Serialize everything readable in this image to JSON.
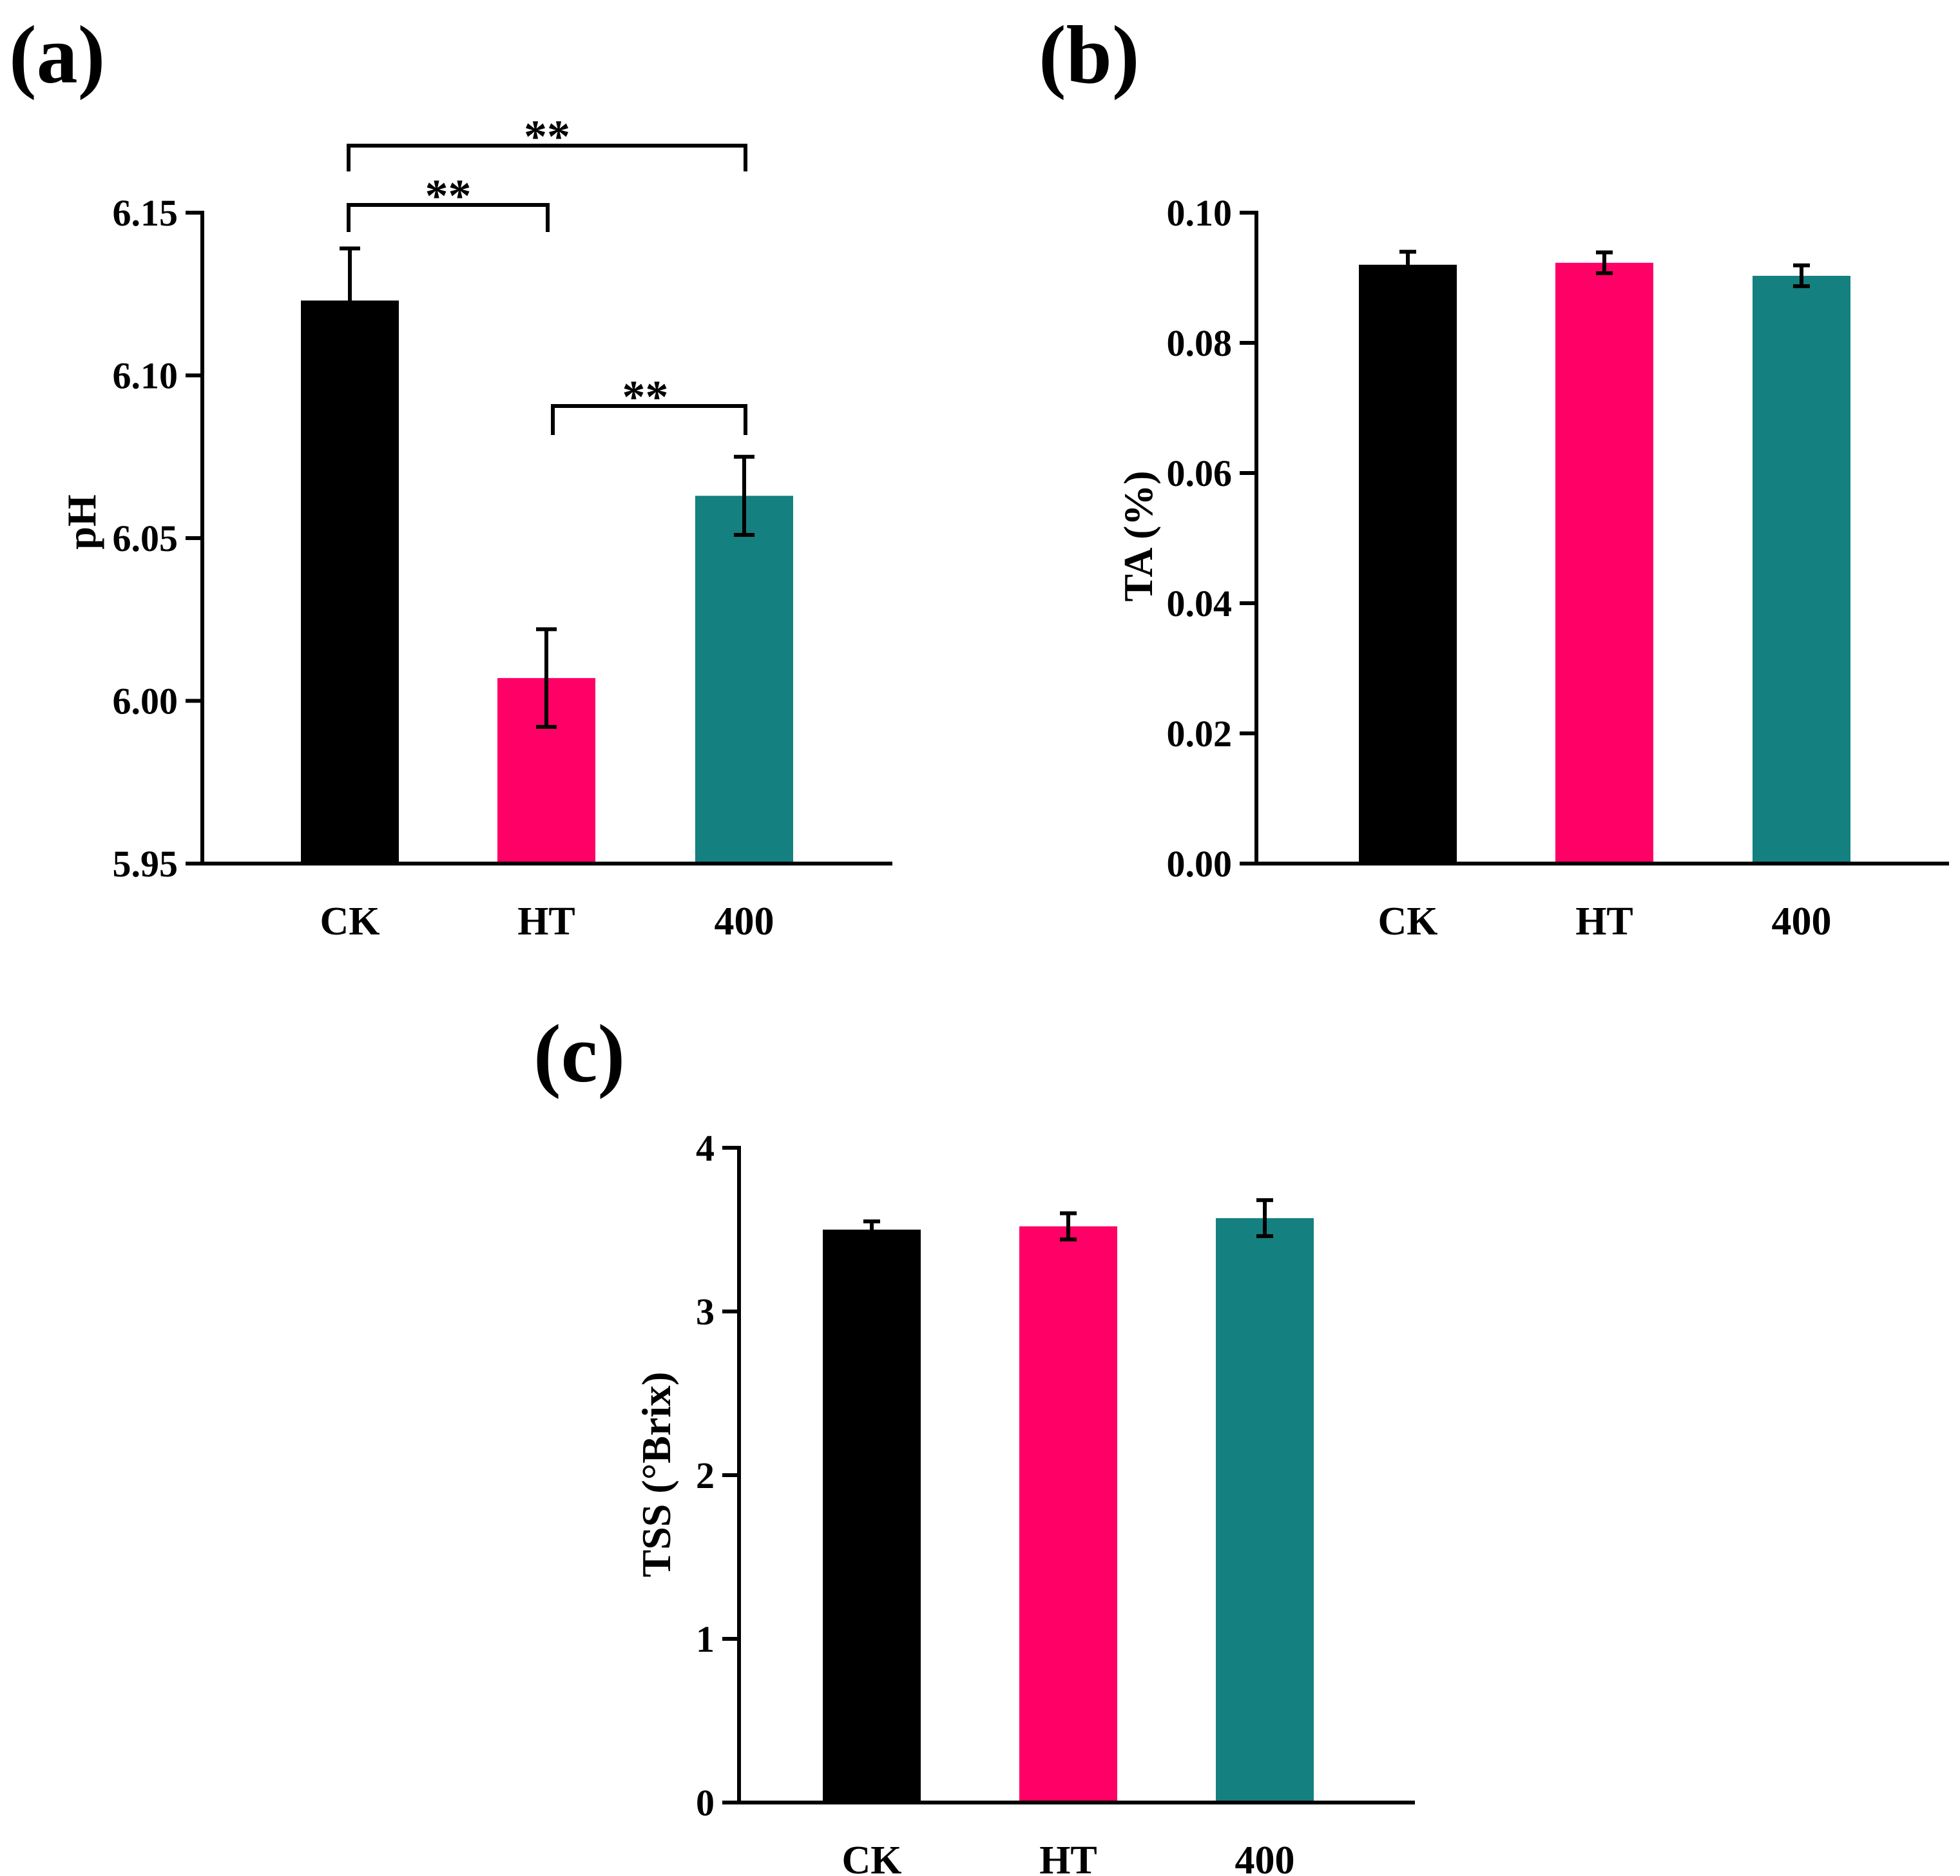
{
  "chart_data": [
    {
      "panel": "(a)",
      "type": "bar",
      "title": "",
      "xlabel": "",
      "ylabel": "pH",
      "categories": [
        "CK",
        "HT",
        "400"
      ],
      "values": [
        6.123,
        6.007,
        6.063
      ],
      "errors": [
        0.016,
        0.015,
        0.012
      ],
      "colors": [
        "#000000",
        "#ff0066",
        "#148080"
      ],
      "ylim": [
        5.95,
        6.15
      ],
      "yticks": [
        5.95,
        6.0,
        6.05,
        6.1,
        6.15
      ],
      "ytick_labels": [
        "5.95",
        "6.00",
        "6.05",
        "6.10",
        "6.15"
      ],
      "annotations": [
        {
          "from": "CK",
          "to": "400",
          "label": "**"
        },
        {
          "from": "CK",
          "to": "HT",
          "label": "**"
        },
        {
          "from": "HT",
          "to": "400",
          "label": "**"
        }
      ]
    },
    {
      "panel": "(b)",
      "type": "bar",
      "title": "",
      "xlabel": "",
      "ylabel": "TA (%)",
      "categories": [
        "CK",
        "HT",
        "400"
      ],
      "values": [
        0.092,
        0.0923,
        0.0903
      ],
      "errors": [
        0.002,
        0.0016,
        0.0016
      ],
      "colors": [
        "#000000",
        "#ff0066",
        "#148080"
      ],
      "ylim": [
        0,
        0.1
      ],
      "yticks": [
        0,
        0.02,
        0.04,
        0.06,
        0.08,
        0.1
      ],
      "ytick_labels": [
        "0.00",
        "0.02",
        "0.04",
        "0.06",
        "0.08",
        "0.10"
      ],
      "annotations": []
    },
    {
      "panel": "(c)",
      "type": "bar",
      "title": "",
      "xlabel": "",
      "ylabel": "TSS (°Brix)",
      "categories": [
        "CK",
        "HT",
        "400"
      ],
      "values": [
        3.5,
        3.52,
        3.57
      ],
      "errors": [
        0.05,
        0.08,
        0.11
      ],
      "colors": [
        "#000000",
        "#ff0066",
        "#148080"
      ],
      "ylim": [
        0,
        4
      ],
      "yticks": [
        0,
        1,
        2,
        3,
        4
      ],
      "ytick_labels": [
        "0",
        "1",
        "2",
        "3",
        "4"
      ],
      "annotations": []
    }
  ]
}
